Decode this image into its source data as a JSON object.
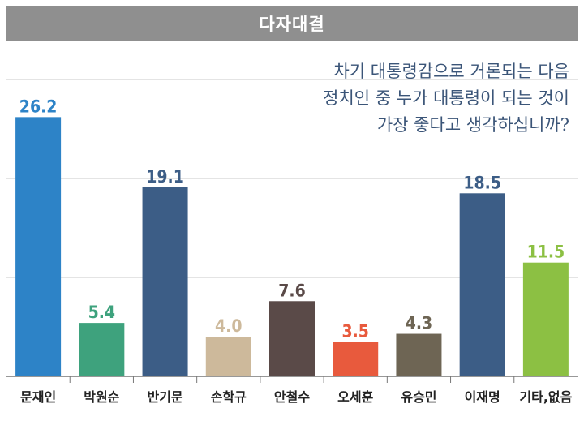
{
  "header": {
    "title": "다자대결"
  },
  "question": {
    "lines": [
      "차기 대통령감으로 거론되는 다음",
      "정치인 중 누가 대통령이 되는 것이",
      "가장 좋다고 생각하십니까?"
    ]
  },
  "chart_data": {
    "type": "bar",
    "title": "다자대결",
    "categories": [
      "문재인",
      "박원순",
      "반기문",
      "손학규",
      "안철수",
      "오세훈",
      "유승민",
      "이재명",
      "기타,없음"
    ],
    "values": [
      26.2,
      5.4,
      19.1,
      4.0,
      7.6,
      3.5,
      4.3,
      18.5,
      11.5
    ],
    "value_labels": [
      "26.2",
      "5.4",
      "19.1",
      "4.0",
      "7.6",
      "3.5",
      "4.3",
      "18.5",
      "11.5"
    ],
    "colors": [
      "#2d83c7",
      "#3ea27d",
      "#3c5d86",
      "#cdb99b",
      "#5a4a48",
      "#e85a3d",
      "#6e6554",
      "#3c5d86",
      "#8cc043"
    ],
    "ylim": [
      0,
      30
    ],
    "grid": true,
    "xlabel": "",
    "ylabel": ""
  }
}
